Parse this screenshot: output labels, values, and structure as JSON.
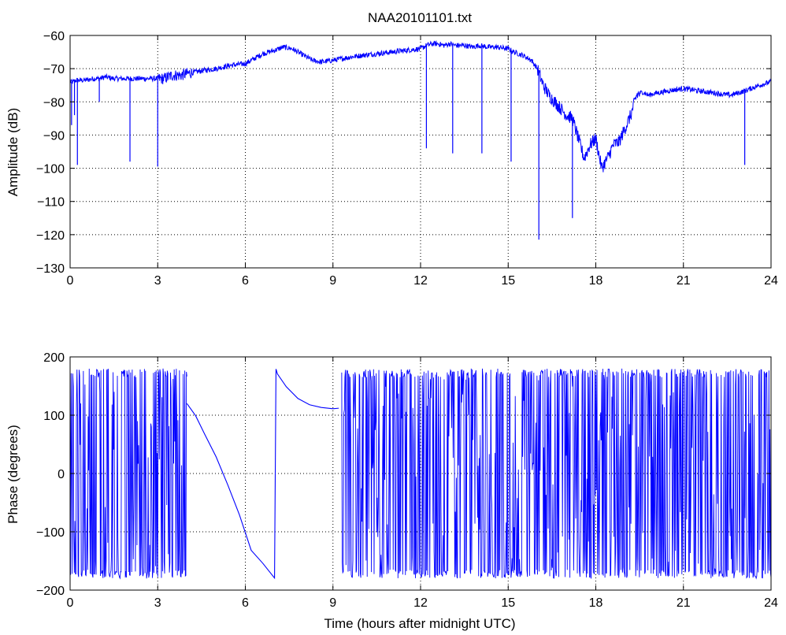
{
  "figure": {
    "title": "NAA20101101.txt"
  },
  "colors": {
    "line": "#0000ff",
    "axes": "#000000",
    "grid": "#000000",
    "background": "#ffffff"
  },
  "chart_data": [
    {
      "type": "line",
      "title": "NAA20101101.txt",
      "xlabel": "",
      "ylabel": "Amplitude (dB)",
      "xlim": [
        0,
        24
      ],
      "ylim": [
        -130,
        -60
      ],
      "xticks": [
        0,
        3,
        6,
        9,
        12,
        15,
        18,
        21,
        24
      ],
      "yticks": [
        -60,
        -70,
        -80,
        -90,
        -100,
        -110,
        -120,
        -130
      ],
      "grid": true,
      "series": [
        {
          "x": [
            0,
            0.1,
            0.2,
            0.3,
            0.5,
            0.8,
            1.0,
            1.2,
            1.5,
            1.8,
            2.0,
            2.2,
            2.5,
            2.8,
            3.0,
            3.2,
            3.5,
            3.8,
            4.0,
            4.3,
            4.6,
            5.0,
            5.5,
            6.0,
            6.3,
            6.6,
            7.0,
            7.3,
            7.6,
            8.0,
            8.3,
            8.6,
            9.0,
            9.3,
            9.6,
            10.0,
            10.5,
            11.0,
            11.5,
            12.0,
            12.2,
            12.4,
            12.6,
            12.8,
            13.0,
            13.2,
            13.5,
            13.8,
            14.0,
            14.3,
            14.6,
            15.0,
            15.2,
            15.5,
            15.8,
            16.0,
            16.2,
            16.4,
            16.6,
            16.8,
            17.0,
            17.2,
            17.4,
            17.6,
            17.8,
            18.0,
            18.2,
            18.4,
            18.6,
            18.8,
            19.0,
            19.2,
            19.4,
            19.6,
            19.8,
            20.0,
            20.3,
            20.6,
            21.0,
            21.4,
            21.8,
            22.2,
            22.6,
            23.0,
            23.3,
            23.6,
            24.0
          ],
          "y": [
            -74,
            -74,
            -73.5,
            -73.5,
            -73.5,
            -73,
            -73,
            -72.5,
            -73,
            -73,
            -73,
            -73,
            -73,
            -73,
            -73,
            -73,
            -72,
            -72,
            -71.5,
            -71,
            -70.5,
            -70,
            -69,
            -68.5,
            -67,
            -65.5,
            -64.5,
            -63.5,
            -64,
            -66,
            -67.5,
            -68,
            -67.5,
            -67,
            -66.5,
            -66,
            -65.5,
            -65,
            -64.5,
            -64,
            -63,
            -62.5,
            -62.5,
            -63,
            -62.5,
            -63,
            -63,
            -63.5,
            -63,
            -63.5,
            -63.5,
            -64,
            -65,
            -66,
            -67.5,
            -70,
            -75,
            -78,
            -80,
            -82,
            -84,
            -85,
            -91,
            -97,
            -93,
            -91,
            -100,
            -97,
            -93,
            -92,
            -88,
            -84,
            -78,
            -77,
            -78,
            -77.5,
            -77,
            -76.5,
            -76,
            -76.5,
            -77,
            -77.5,
            -78,
            -77,
            -76,
            -75,
            -74
          ]
        }
      ],
      "spikes": [
        {
          "x": 0.05,
          "y": -87
        },
        {
          "x": 0.15,
          "y": -84
        },
        {
          "x": 0.25,
          "y": -99
        },
        {
          "x": 1.0,
          "y": -80
        },
        {
          "x": 2.05,
          "y": -98
        },
        {
          "x": 3.0,
          "y": -99.5
        },
        {
          "x": 12.2,
          "y": -94
        },
        {
          "x": 13.1,
          "y": -95.5
        },
        {
          "x": 14.1,
          "y": -95.5
        },
        {
          "x": 15.1,
          "y": -98
        },
        {
          "x": 16.05,
          "y": -121.5
        },
        {
          "x": 17.2,
          "y": -115
        },
        {
          "x": 23.1,
          "y": -99
        }
      ]
    },
    {
      "type": "line",
      "title": "",
      "xlabel": "Time (hours after midnight UTC)",
      "ylabel": "Phase (degrees)",
      "xlim": [
        0,
        24
      ],
      "ylim": [
        -200,
        200
      ],
      "xticks": [
        0,
        3,
        6,
        9,
        12,
        15,
        18,
        21,
        24
      ],
      "yticks": [
        200,
        100,
        0,
        -100,
        -200
      ],
      "grid": true,
      "series": [
        {
          "x": [
            4.0,
            4.3,
            4.6,
            5.0,
            5.4,
            5.8,
            6.2,
            6.6,
            7.0,
            7.05,
            7.1,
            7.4,
            7.8,
            8.2,
            8.6,
            9.0,
            9.2
          ],
          "y": [
            120,
            100,
            70,
            30,
            -20,
            -70,
            -130,
            -155,
            -180,
            180,
            172,
            150,
            130,
            118,
            114,
            113,
            112
          ]
        }
      ],
      "noise_bands": [
        {
          "x_start": 0.0,
          "x_end": 4.0,
          "y_min": -180,
          "y_max": 180
        },
        {
          "x_start": 9.3,
          "x_end": 24.0,
          "y_min": -180,
          "y_max": 180
        }
      ]
    }
  ]
}
